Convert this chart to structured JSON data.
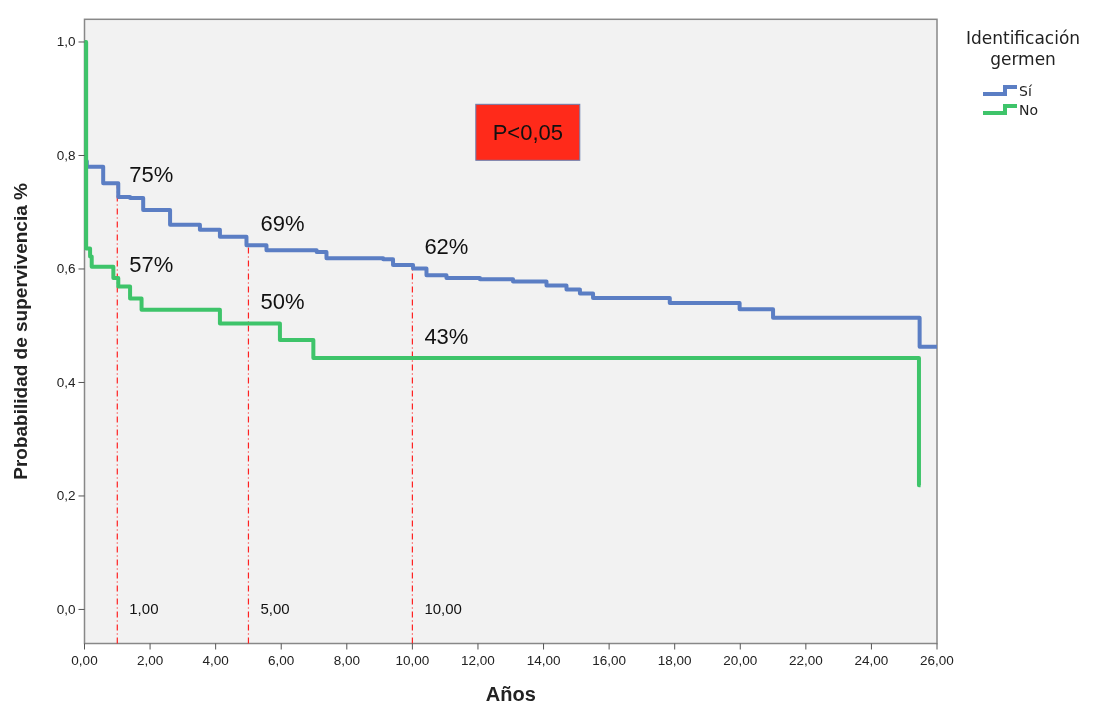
{
  "chart_data": {
    "type": "step",
    "xlabel": "Años",
    "ylabel": "Probabilidad de supervivencia %",
    "legend_title": "Identificación germen",
    "legend": "top right",
    "grid": false,
    "line_style": "solid",
    "xlim": [
      0,
      26
    ],
    "ylim": [
      -0.06,
      1.04
    ],
    "xticks": [
      {
        "value": 0,
        "label": "0,00"
      },
      {
        "value": 2,
        "label": "2,00"
      },
      {
        "value": 4,
        "label": "4,00"
      },
      {
        "value": 6,
        "label": "6,00"
      },
      {
        "value": 8,
        "label": "8,00"
      },
      {
        "value": 10,
        "label": "10,00"
      },
      {
        "value": 12,
        "label": "12,00"
      },
      {
        "value": 14,
        "label": "14,00"
      },
      {
        "value": 16,
        "label": "16,00"
      },
      {
        "value": 18,
        "label": "18,00"
      },
      {
        "value": 20,
        "label": "20,00"
      },
      {
        "value": 22,
        "label": "22,00"
      },
      {
        "value": 24,
        "label": "24,00"
      },
      {
        "value": 26,
        "label": "26,00"
      }
    ],
    "yticks": [
      {
        "value": 0,
        "label": "0,0"
      },
      {
        "value": 0.2,
        "label": "0,2"
      },
      {
        "value": 0.4,
        "label": "0,4"
      },
      {
        "value": 0.6,
        "label": "0,6"
      },
      {
        "value": 0.8,
        "label": "0,8"
      },
      {
        "value": 1.0,
        "label": "1,0"
      }
    ],
    "series": [
      {
        "name": "Sí",
        "color": "#5b7ec4",
        "x": [
          0,
          0.07,
          0.57,
          1.03,
          1.39,
          1.79,
          2.61,
          3.52,
          4.13,
          4.94,
          5.55,
          7.08,
          7.38,
          9.11,
          9.41,
          10.02,
          10.43,
          11.04,
          12.06,
          13.07,
          14.09,
          14.7,
          15.11,
          15.51,
          17.85,
          19.98,
          21.0,
          25.47,
          26.0
        ],
        "values": [
          0.79,
          0.78,
          0.751,
          0.727,
          0.725,
          0.704,
          0.678,
          0.669,
          0.657,
          0.642,
          0.633,
          0.63,
          0.619,
          0.617,
          0.607,
          0.601,
          0.589,
          0.584,
          0.582,
          0.578,
          0.571,
          0.564,
          0.557,
          0.549,
          0.54,
          0.529,
          0.514,
          0.463,
          0.463
        ]
      },
      {
        "name": "No",
        "color": "#3ec46a",
        "x": [
          0,
          0.05,
          0.17,
          0.22,
          0.88,
          1.03,
          1.39,
          1.74,
          4.13,
          5.96,
          6.98,
          25.45,
          25.5
        ],
        "values": [
          1.0,
          0.636,
          0.622,
          0.604,
          0.584,
          0.569,
          0.548,
          0.528,
          0.504,
          0.475,
          0.443,
          0.219,
          0.219
        ]
      }
    ],
    "ref_lines": [
      {
        "axis": "x",
        "value": 1,
        "label": "1,00",
        "color": "#ff2020",
        "line_style": "dashed"
      },
      {
        "axis": "x",
        "value": 5,
        "label": "5,00",
        "color": "#ff2020",
        "line_style": "dashed"
      },
      {
        "axis": "x",
        "value": 10,
        "label": "10,00",
        "color": "#ff2020",
        "line_style": "dashed"
      }
    ],
    "annotations": [
      {
        "text": "75%",
        "x": 1,
        "y": 0.727
      },
      {
        "text": "69%",
        "x": 5,
        "y": 0.642
      },
      {
        "text": "62%",
        "x": 10,
        "y": 0.601
      },
      {
        "text": "57%",
        "x": 1,
        "y": 0.569
      },
      {
        "text": "50%",
        "x": 5,
        "y": 0.504
      },
      {
        "text": "43%",
        "x": 10,
        "y": 0.443
      },
      "P<0,05"
    ]
  }
}
